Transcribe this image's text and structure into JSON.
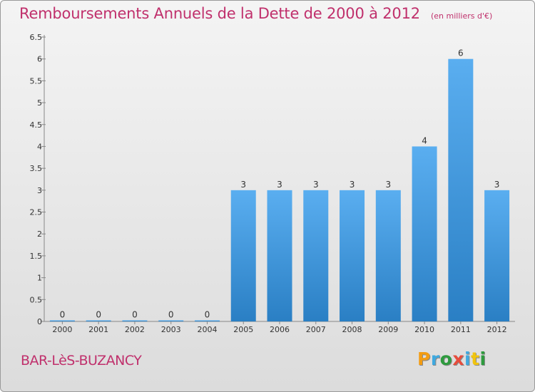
{
  "header": {
    "title": "Remboursements Annuels de la Dette de 2000 à 2012",
    "subtitle": "(en milliers d'€)"
  },
  "footer": {
    "place": "BAR-LèS-BUZANCY",
    "logo": "Proxiti"
  },
  "colors": {
    "bar_top": "#5aaef0",
    "bar_bottom": "#2a7fc4",
    "title": "#c0306c"
  },
  "chart_data": {
    "type": "bar",
    "categories": [
      "2000",
      "2001",
      "2002",
      "2003",
      "2004",
      "2005",
      "2006",
      "2007",
      "2008",
      "2009",
      "2010",
      "2011",
      "2012"
    ],
    "values": [
      0,
      0,
      0,
      0,
      0,
      3,
      3,
      3,
      3,
      3,
      4,
      6,
      3
    ],
    "value_labels": [
      "0",
      "0",
      "0",
      "0",
      "0",
      "3",
      "3",
      "3",
      "3",
      "3",
      "4",
      "6",
      "3"
    ],
    "y_ticks": [
      "0",
      "0.5",
      "1",
      "1.5",
      "2",
      "2.5",
      "3",
      "3.5",
      "4",
      "4.5",
      "5",
      "5.5",
      "6",
      "6.5"
    ],
    "ylim": [
      0,
      6.5
    ],
    "grid": false
  }
}
